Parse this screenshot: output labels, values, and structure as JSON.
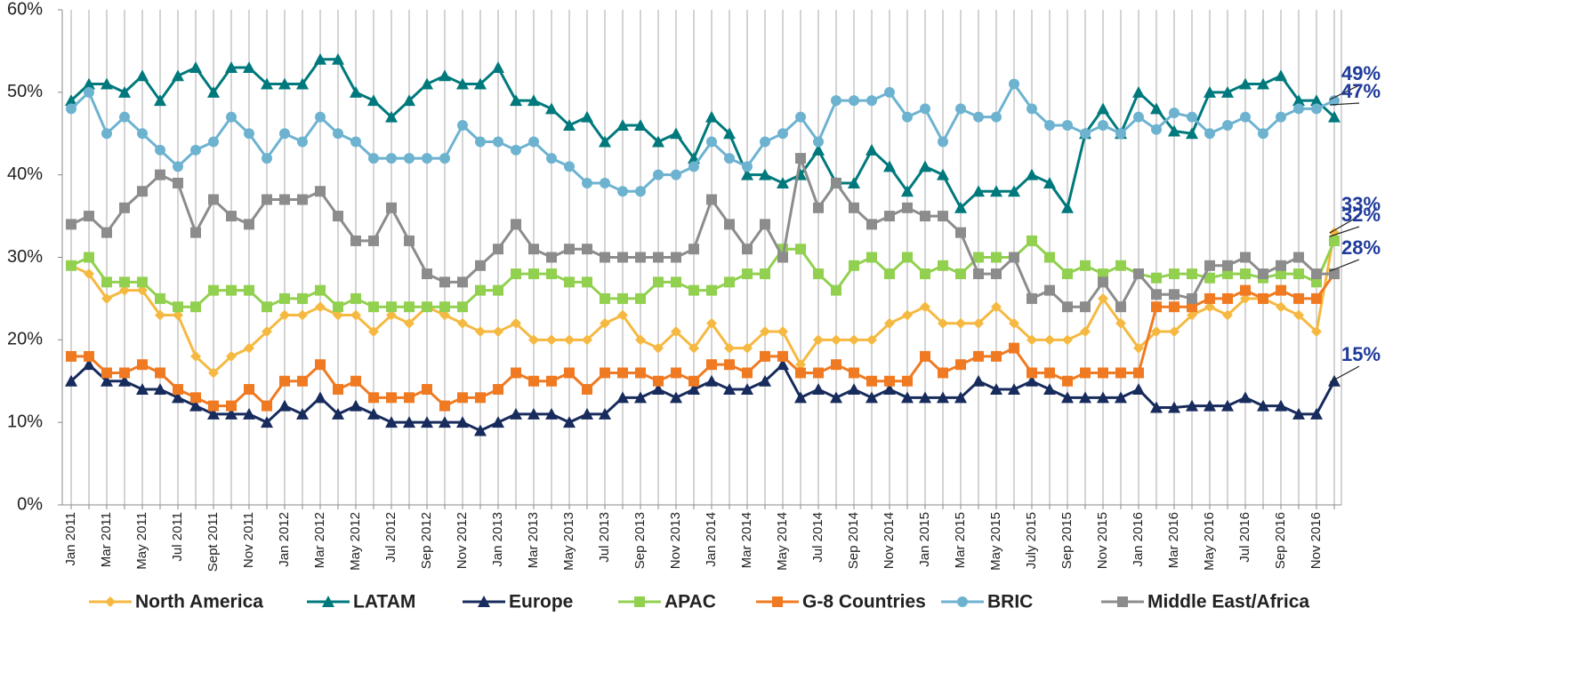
{
  "chart_data": {
    "type": "line",
    "categories": [
      "Jan 2011",
      null,
      "Mar 2011",
      null,
      "May 2011",
      null,
      "Jul 2011",
      null,
      "Sept 2011",
      null,
      "Nov 2011",
      null,
      "Jan 2012",
      null,
      "Mar 2012",
      null,
      "May 2012",
      null,
      "Jul 2012",
      null,
      "Sep 2012",
      null,
      "Nov 2012",
      null,
      "Jan 2013",
      null,
      "Mar 2013",
      null,
      "May 2013",
      null,
      "Jul 2013",
      null,
      "Sep 2013",
      null,
      "Nov 2013",
      null,
      "Jan 2014",
      null,
      "Mar 2014",
      null,
      "May 2014",
      null,
      "Jul 2014",
      null,
      "Sep 2014",
      null,
      "Nov 2014",
      null,
      "Jan 2015",
      null,
      "Mar 2015",
      null,
      "May 2015",
      null,
      "July 2015",
      null,
      "Sep 2015",
      null,
      "Nov 2015",
      null,
      "Jan 2016",
      null,
      "Mar 2016",
      null,
      "May 2016",
      null,
      "Jul 2016",
      null,
      "Sep 2016",
      null,
      "Nov 2016",
      null
    ],
    "series": [
      {
        "name": "North America",
        "color": "#f5b942",
        "marker": "diamond",
        "values": [
          29,
          28,
          25,
          26,
          26,
          23,
          23,
          18,
          16,
          18,
          19,
          21,
          23,
          23,
          24,
          23,
          23,
          21,
          23,
          22,
          24,
          23,
          22,
          21,
          21,
          22,
          20,
          20,
          20,
          20,
          22,
          23,
          20,
          19,
          21,
          19,
          22,
          19,
          19,
          21,
          21,
          17,
          20,
          20,
          20,
          20,
          22,
          23,
          24,
          22,
          22,
          22,
          24,
          22,
          20,
          20,
          20,
          21,
          25,
          22,
          19,
          21,
          21,
          23,
          24,
          23,
          25,
          25,
          24,
          23,
          21,
          33
        ]
      },
      {
        "name": "LATAM",
        "color": "#00797c",
        "marker": "triangle",
        "values": [
          49,
          51,
          51,
          50,
          52,
          49,
          52,
          53,
          50,
          53,
          53,
          51,
          51,
          51,
          54,
          54,
          50,
          49,
          47,
          49,
          51,
          52,
          51,
          51,
          53,
          49,
          49,
          48,
          46,
          47,
          44,
          46,
          46,
          44,
          45,
          42,
          47,
          45,
          40,
          40,
          39,
          40,
          43,
          39,
          39,
          43,
          41,
          38,
          41,
          40,
          36,
          38,
          38,
          38,
          40,
          39,
          36,
          45,
          48,
          45,
          50,
          48,
          45.3,
          45,
          50,
          50,
          51,
          51,
          52,
          49,
          49,
          47
        ]
      },
      {
        "name": "Europe",
        "color": "#172b5c",
        "marker": "triangle",
        "values": [
          15,
          17,
          15,
          15,
          14,
          14,
          13,
          12,
          11,
          11,
          11,
          10,
          12,
          11,
          13,
          11,
          12,
          11,
          10,
          10,
          10,
          10,
          10,
          9,
          10,
          11,
          11,
          11,
          10,
          11,
          11,
          13,
          13,
          14,
          13,
          14,
          15,
          14,
          14,
          15,
          17,
          13,
          14,
          13,
          14,
          13,
          14,
          13,
          13,
          13,
          13,
          15,
          14,
          14,
          15,
          14,
          13,
          13,
          13,
          13,
          14,
          11.8,
          11.8,
          12,
          12,
          12,
          13,
          12,
          12,
          11,
          11,
          15
        ]
      },
      {
        "name": "APAC",
        "color": "#92d050",
        "marker": "square",
        "values": [
          29,
          30,
          27,
          27,
          27,
          25,
          24,
          24,
          26,
          26,
          26,
          24,
          25,
          25,
          26,
          24,
          25,
          24,
          24,
          24,
          24,
          24,
          24,
          26,
          26,
          28,
          28,
          28,
          27,
          27,
          25,
          25,
          25,
          27,
          27,
          26,
          26,
          27,
          28,
          28,
          31,
          31,
          28,
          26,
          29,
          30,
          28,
          30,
          28,
          29,
          28,
          30,
          30,
          30,
          32,
          30,
          28,
          29,
          28,
          29,
          28,
          27.5,
          28,
          28,
          27.5,
          28,
          28,
          27.5,
          28,
          28,
          27,
          32
        ]
      },
      {
        "name": "G-8 Countries",
        "color": "#f07a22",
        "marker": "square",
        "values": [
          18,
          18,
          16,
          16,
          17,
          16,
          14,
          13,
          12,
          12,
          14,
          12,
          15,
          15,
          17,
          14,
          15,
          13,
          13,
          13,
          14,
          12,
          13,
          13,
          14,
          16,
          15,
          15,
          16,
          14,
          16,
          16,
          16,
          15,
          16,
          15,
          17,
          17,
          16,
          18,
          18,
          16,
          16,
          17,
          16,
          15,
          15,
          15,
          18,
          16,
          17,
          18,
          18,
          19,
          16,
          16,
          15,
          16,
          16,
          16,
          16,
          24,
          24,
          24,
          25,
          25,
          26,
          25,
          26,
          25,
          25,
          28
        ]
      },
      {
        "name": "BRIC",
        "color": "#6db3d0",
        "marker": "circle",
        "values": [
          48,
          50,
          45,
          47,
          45,
          43,
          41,
          43,
          44,
          47,
          45,
          42,
          45,
          44,
          47,
          45,
          44,
          42,
          42,
          42,
          42,
          42,
          46,
          44,
          44,
          43,
          44,
          42,
          41,
          39,
          39,
          38,
          38,
          40,
          40,
          41,
          44,
          42,
          41,
          44,
          45,
          47,
          44,
          49,
          49,
          49,
          50,
          47,
          48,
          44,
          48,
          47,
          47,
          51,
          48,
          46,
          46,
          45,
          46,
          45,
          47,
          45.5,
          47.5,
          47,
          45,
          46,
          47,
          45,
          47,
          48,
          48,
          49
        ]
      },
      {
        "name": "Middle East/Africa",
        "color": "#8c8c8c",
        "marker": "square",
        "values": [
          34,
          35,
          33,
          36,
          38,
          40,
          39,
          33,
          37,
          35,
          34,
          37,
          37,
          37,
          38,
          35,
          32,
          32,
          36,
          32,
          28,
          27,
          27,
          29,
          31,
          34,
          31,
          30,
          31,
          31,
          30,
          30,
          30,
          30,
          30,
          31,
          37,
          34,
          31,
          34,
          30,
          42,
          36,
          39,
          36,
          34,
          35,
          36,
          35,
          35,
          33,
          28,
          28,
          30,
          25,
          26,
          24,
          24,
          27,
          24,
          28,
          25.5,
          25.5,
          25,
          29,
          29,
          30,
          28,
          29,
          30,
          28,
          28
        ]
      }
    ],
    "annotations": [
      "49%",
      "47%",
      "33%",
      "32%",
      "28%",
      "15%"
    ],
    "ylim": [
      0,
      60
    ],
    "yticks": [
      {
        "value": 0,
        "label": "0%"
      },
      {
        "value": 10,
        "label": "10%"
      },
      {
        "value": 20,
        "label": "20%"
      },
      {
        "value": 30,
        "label": "30%"
      },
      {
        "value": 40,
        "label": "40%"
      },
      {
        "value": 50,
        "label": "50%"
      },
      {
        "value": 60,
        "label": "60%"
      }
    ],
    "grid": true,
    "legend": "bottom"
  }
}
